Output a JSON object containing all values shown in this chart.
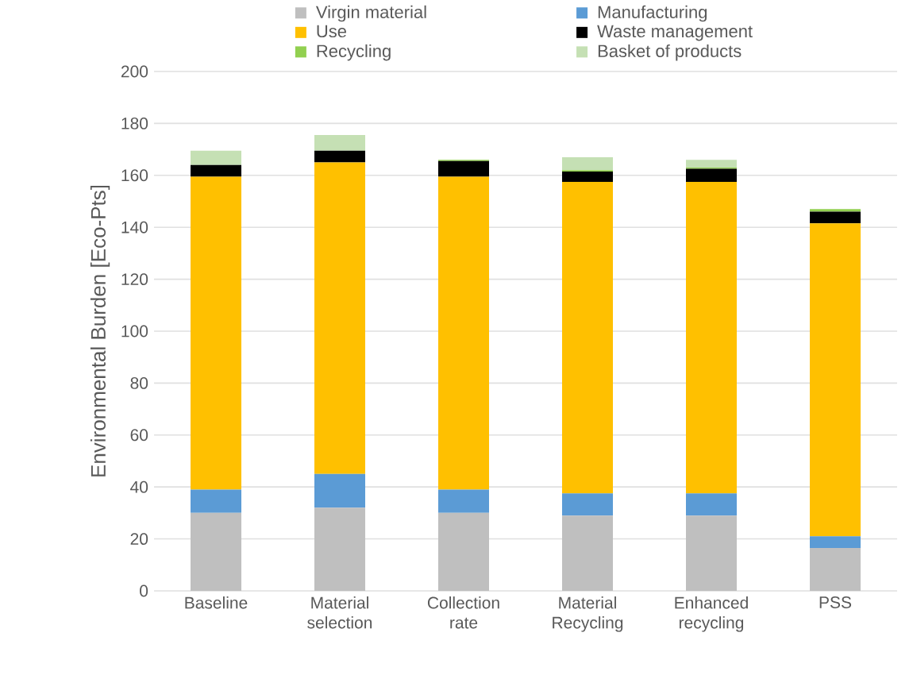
{
  "chart_data": {
    "type": "bar",
    "stacked": true,
    "ylabel": "Environmental Burden  [Eco-Pts]",
    "categories": [
      "Baseline",
      "Material selection",
      "Collection rate",
      "Material Recycling",
      "Enhanced recycling",
      "PSS"
    ],
    "series": [
      {
        "name": "Virgin material",
        "color": "#bfbfbf",
        "values": [
          30,
          32,
          30,
          29,
          29,
          16.5
        ]
      },
      {
        "name": "Manufacturing",
        "color": "#5b9bd5",
        "values": [
          9,
          13,
          9,
          8.5,
          8.5,
          4.5
        ]
      },
      {
        "name": "Use",
        "color": "#ffc000",
        "values": [
          120.5,
          120,
          120.5,
          120,
          120,
          120.5
        ]
      },
      {
        "name": "Waste management",
        "color": "#000000",
        "values": [
          4.5,
          4.5,
          6,
          4,
          5,
          4.5
        ]
      },
      {
        "name": "Recycling",
        "color": "#92d050",
        "values": [
          0,
          0,
          0.5,
          0.5,
          0.5,
          1
        ]
      },
      {
        "name": "Basket of products",
        "color": "#c5e0b4",
        "values": [
          5.5,
          6,
          0,
          5,
          3,
          0
        ]
      }
    ],
    "ylim": [
      0,
      200
    ],
    "yticks": [
      0,
      20,
      40,
      60,
      80,
      100,
      120,
      140,
      160,
      180,
      200
    ],
    "grid": "y",
    "legend": "top"
  }
}
